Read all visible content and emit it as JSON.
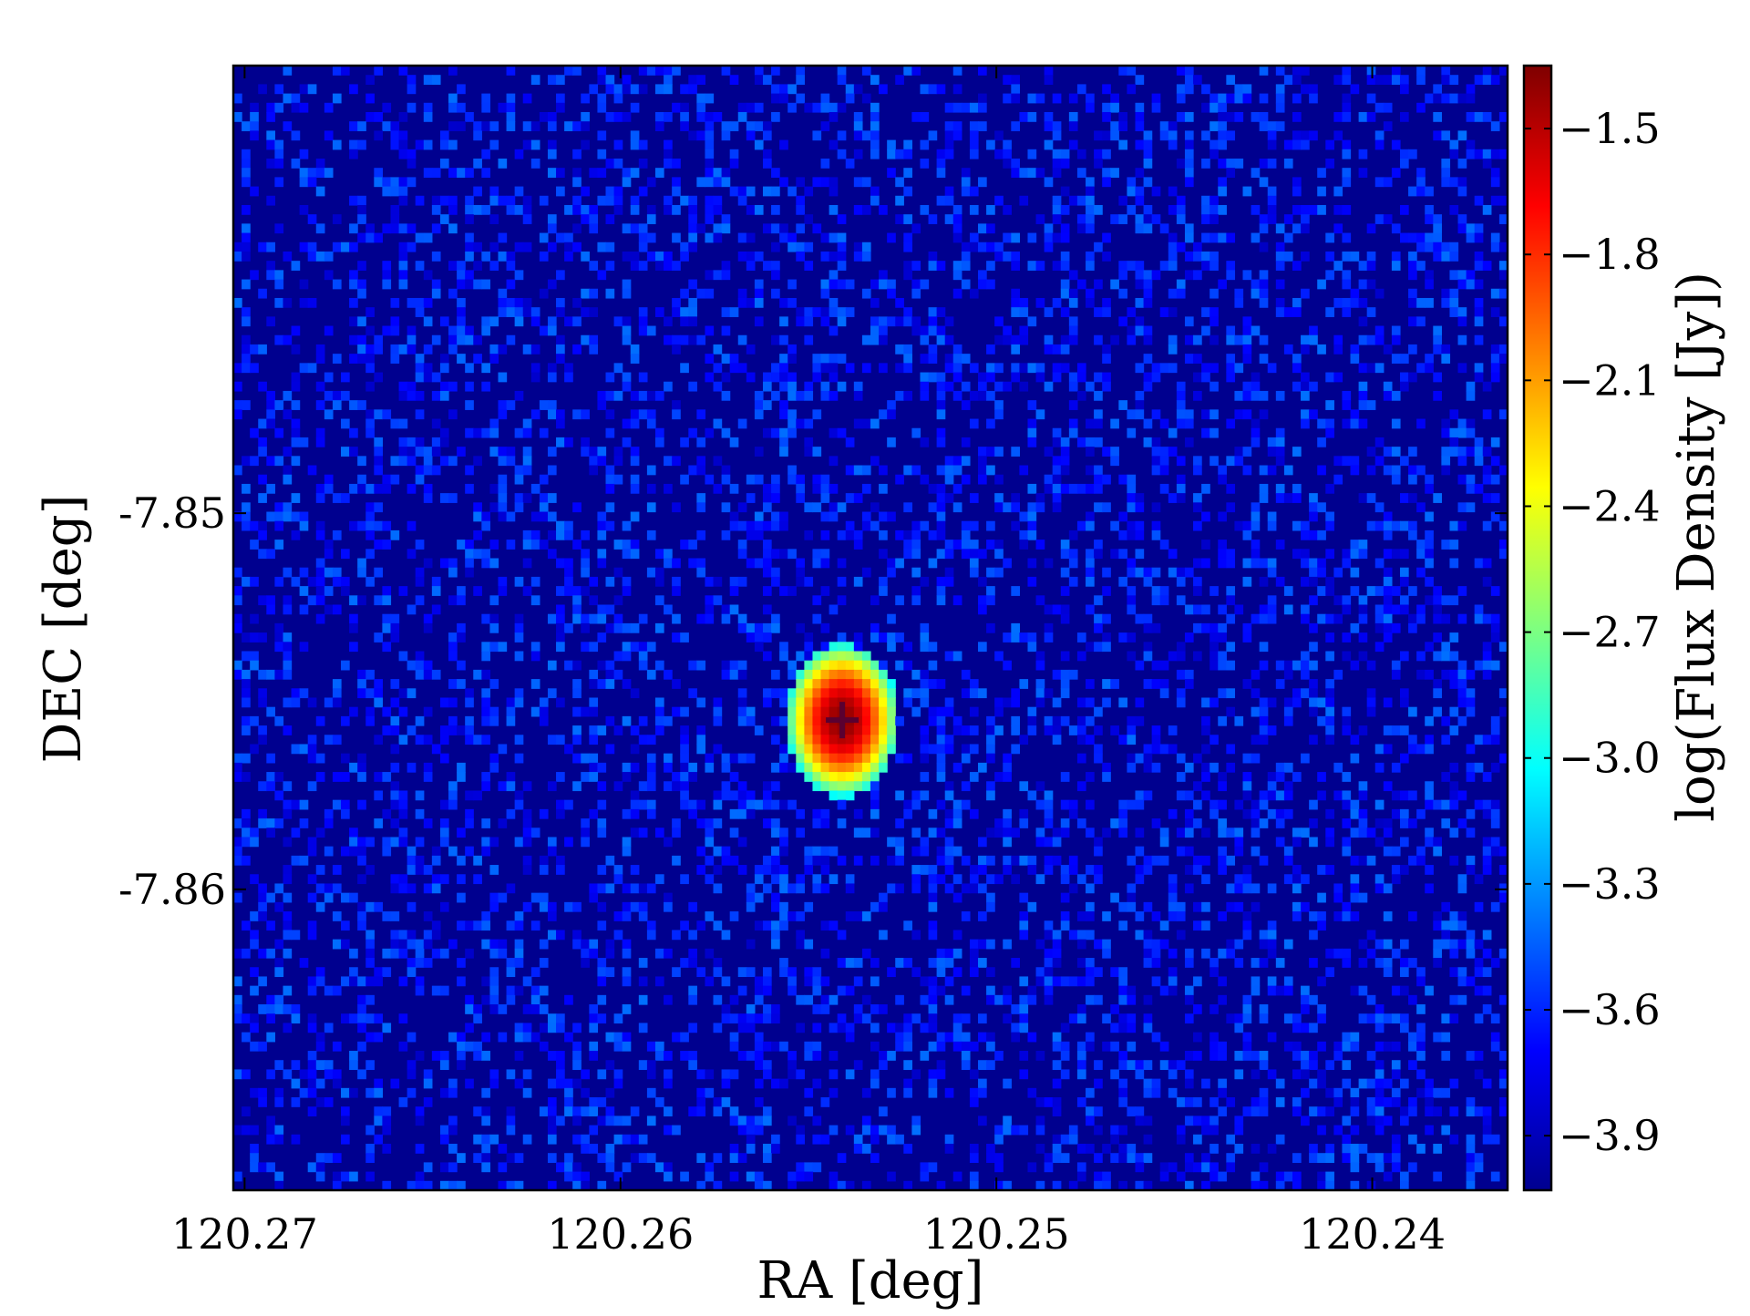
{
  "chart_data": {
    "type": "heatmap",
    "title": "",
    "xlabel": "RA [deg]",
    "ylabel": "DEC [deg]",
    "colorbar_label": "log(Flux Density [Jy])",
    "colormap": "jet",
    "xlim": [
      120.2703,
      120.2364
    ],
    "ylim": [
      -7.868,
      -7.8381
    ],
    "x_inverted": true,
    "x_ticks": [
      120.27,
      120.26,
      120.25,
      120.24
    ],
    "x_tick_labels": [
      "120.27",
      "120.26",
      "120.25",
      "120.24"
    ],
    "y_ticks": [
      -7.85,
      -7.86
    ],
    "y_tick_labels": [
      "-7.85",
      "-7.86"
    ],
    "colorbar_range": [
      -4.03,
      -1.35
    ],
    "colorbar_ticks": [
      -1.5,
      -1.8,
      -2.1,
      -2.4,
      -2.7,
      -3.0,
      -3.3,
      -3.6,
      -3.9
    ],
    "colorbar_tick_labels": [
      "−1.5",
      "−1.8",
      "−2.1",
      "−2.4",
      "−2.7",
      "−3.0",
      "−3.3",
      "−3.6",
      "−3.9"
    ],
    "grid": false,
    "source_peak": {
      "ra": 120.2541,
      "dec": -7.8555,
      "value": -1.38
    },
    "background_level": -4.0,
    "noise_pixel_fraction": 0.3,
    "colors": {
      "background": "#00008f",
      "noise_low": "#0000d0",
      "noise_high": "#2060ff",
      "peak": "#a00000"
    }
  }
}
